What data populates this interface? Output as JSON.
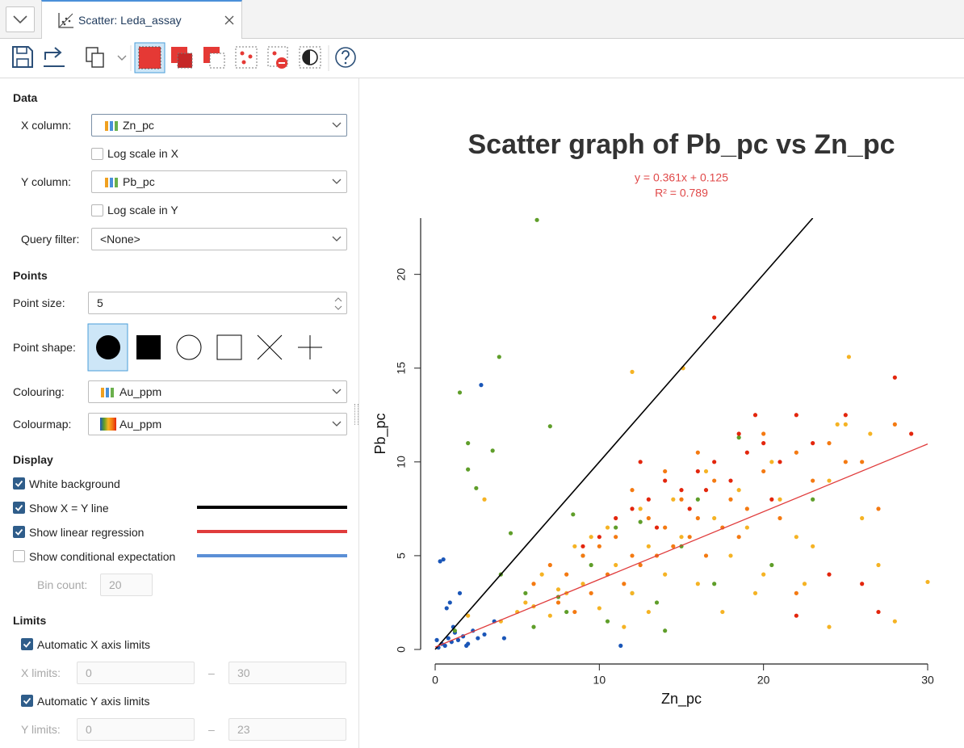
{
  "tab": {
    "title": "Scatter: Leda_assay"
  },
  "panel": {
    "data": {
      "heading": "Data",
      "x_column": {
        "label": "X column:",
        "value": "Zn_pc"
      },
      "log_x": {
        "label": "Log scale in X",
        "checked": false
      },
      "y_column": {
        "label": "Y column:",
        "value": "Pb_pc"
      },
      "log_y": {
        "label": "Log scale in Y",
        "checked": false
      },
      "query_filter": {
        "label": "Query filter:",
        "value": "<None>"
      }
    },
    "points": {
      "heading": "Points",
      "point_size": {
        "label": "Point size:",
        "value": 5
      },
      "point_shape": {
        "label": "Point shape:"
      },
      "colouring": {
        "label": "Colouring:",
        "value": "Au_ppm"
      },
      "colourmap": {
        "label": "Colourmap:",
        "value": "Au_ppm"
      }
    },
    "display": {
      "heading": "Display",
      "options": [
        {
          "label": "White background",
          "checked": true
        },
        {
          "label": "Show X = Y line",
          "checked": true,
          "color": "#000000"
        },
        {
          "label": "Show linear regression",
          "checked": true,
          "color": "#e03c3c"
        },
        {
          "label": "Show conditional expectation",
          "checked": false,
          "color": "#5b8fd6"
        }
      ],
      "bin_count": {
        "label": "Bin count:",
        "value": 20
      }
    },
    "limits": {
      "heading": "Limits",
      "auto_x": {
        "label": "Automatic X axis limits",
        "checked": true
      },
      "x_limits": {
        "label": "X limits:",
        "min": 0,
        "max": 30
      },
      "auto_y": {
        "label": "Automatic Y axis limits",
        "checked": true
      },
      "y_limits": {
        "label": "Y limits:",
        "min": 0,
        "max": 23
      },
      "separator": "–"
    }
  },
  "chart_data": {
    "type": "scatter",
    "title": "Scatter graph of Pb_pc vs Zn_pc",
    "annotation": [
      "y = 0.361x + 0.125",
      "R² = 0.789"
    ],
    "x_label": "Zn_pc",
    "y_label": "Pb_pc",
    "xlim": [
      0,
      30
    ],
    "ylim": [
      0,
      23
    ],
    "xticks": [
      0,
      10,
      20,
      30
    ],
    "yticks": [
      0,
      5,
      10,
      15,
      20
    ],
    "identity_line": {
      "color": "#000000"
    },
    "regression": {
      "slope": 0.361,
      "intercept": 0.125,
      "color": "#e03c3c"
    },
    "series": [
      {
        "color": "#1a56b8",
        "x": [
          0.2,
          0.4,
          0.6,
          0.8,
          1.0,
          1.2,
          1.4,
          1.7,
          2.0,
          2.3,
          2.6,
          3.0,
          0.3,
          0.5,
          0.9,
          1.1,
          1.5,
          0.1,
          0.7,
          2.8,
          3.6,
          4.2,
          1.9,
          11.3
        ],
        "values": [
          0.1,
          0.3,
          0.2,
          0.6,
          0.4,
          0.9,
          0.5,
          0.7,
          0.3,
          1.0,
          0.6,
          0.8,
          4.7,
          4.8,
          2.5,
          1.2,
          3.0,
          0.5,
          2.2,
          14.1,
          1.5,
          0.6,
          0.2,
          0.2
        ]
      },
      {
        "color": "#5f9e2a",
        "x": [
          1.5,
          3.9,
          6.2,
          2.0,
          4.6,
          7.0,
          5.5,
          8.0,
          9.5,
          10.5,
          12.0,
          13.5,
          15.0,
          3.5,
          2.5,
          11.0,
          14.0,
          17.0,
          18.5,
          6.0,
          8.4,
          23.0,
          1.2,
          4.0,
          2.0,
          9.0,
          16.0,
          20.5,
          7.5,
          12.5
        ],
        "values": [
          13.7,
          15.6,
          22.9,
          9.6,
          6.2,
          11.9,
          3.0,
          2.0,
          4.5,
          1.5,
          3.0,
          2.5,
          5.5,
          10.6,
          8.6,
          6.5,
          1.0,
          3.5,
          11.3,
          1.2,
          7.2,
          8.0,
          1.0,
          4.0,
          11.0,
          5.0,
          8.0,
          4.5,
          2.8,
          6.8
        ]
      },
      {
        "color": "#f5b324",
        "x": [
          4,
          5,
          6,
          7,
          8,
          9,
          10,
          11,
          12,
          13,
          14,
          15,
          16,
          17,
          18,
          19,
          20,
          21,
          22,
          23,
          24,
          25,
          26,
          27,
          28,
          30,
          6.5,
          8.5,
          10.5,
          12.5,
          14.5,
          16.5,
          18.5,
          20.5,
          22.5,
          24.5,
          11.5,
          13,
          9.5,
          7.5,
          5.5,
          15.1,
          17.5,
          19.5,
          26.5,
          25.2,
          3,
          2,
          12,
          24
        ],
        "values": [
          1.5,
          2.0,
          2.3,
          1.8,
          3.0,
          3.5,
          2.2,
          4.5,
          3.0,
          5.5,
          4.0,
          6.0,
          3.5,
          7.0,
          5.0,
          6.5,
          4.0,
          8.0,
          6.0,
          5.5,
          9.0,
          12.0,
          7.0,
          4.5,
          1.5,
          3.6,
          4.0,
          5.5,
          6.5,
          7.5,
          8.0,
          9.5,
          8.5,
          10.0,
          3.5,
          12.0,
          1.2,
          2.0,
          6.0,
          3.2,
          2.5,
          15.0,
          2.0,
          3.0,
          11.5,
          15.6,
          8.0,
          1.8,
          14.8,
          1.2
        ]
      },
      {
        "color": "#f47a12",
        "x": [
          6,
          7,
          8,
          9,
          10,
          11,
          12,
          13,
          14,
          15,
          16,
          17,
          18,
          19,
          20,
          21,
          22,
          23,
          24,
          25,
          9.5,
          10.5,
          11.5,
          12.5,
          13.5,
          14.5,
          15.5,
          16.5,
          17.5,
          18.5,
          7.5,
          8.5,
          12,
          14,
          16,
          20,
          26,
          28,
          22,
          27
        ],
        "values": [
          3.5,
          4.5,
          4.0,
          5.0,
          5.5,
          6.0,
          5.0,
          7.0,
          6.5,
          8.0,
          7.0,
          9.0,
          8.0,
          7.5,
          9.5,
          7.0,
          10.5,
          9.0,
          11.0,
          10.0,
          3.0,
          4.0,
          3.5,
          4.5,
          5.0,
          5.5,
          6.0,
          5.0,
          6.5,
          6.0,
          2.5,
          2.0,
          8.5,
          9.5,
          10.5,
          11.5,
          10.0,
          12.0,
          3.0,
          7.5
        ]
      },
      {
        "color": "#e3260d",
        "x": [
          10,
          11,
          12,
          13,
          14,
          15,
          16,
          17,
          18,
          19,
          20,
          21,
          22,
          23,
          25,
          17,
          28,
          29,
          27,
          24,
          13.5,
          15.5,
          16.5,
          18.5,
          20.5,
          9,
          12.5,
          19.5,
          26,
          22
        ],
        "values": [
          6.0,
          7.0,
          7.5,
          8.0,
          9.0,
          8.5,
          9.5,
          10.0,
          9.0,
          10.5,
          11.0,
          10.0,
          12.5,
          11.0,
          12.5,
          17.7,
          14.5,
          11.5,
          2.0,
          4.0,
          6.5,
          7.5,
          8.5,
          11.5,
          8.0,
          5.5,
          10.0,
          12.5,
          3.5,
          1.8
        ]
      }
    ]
  }
}
